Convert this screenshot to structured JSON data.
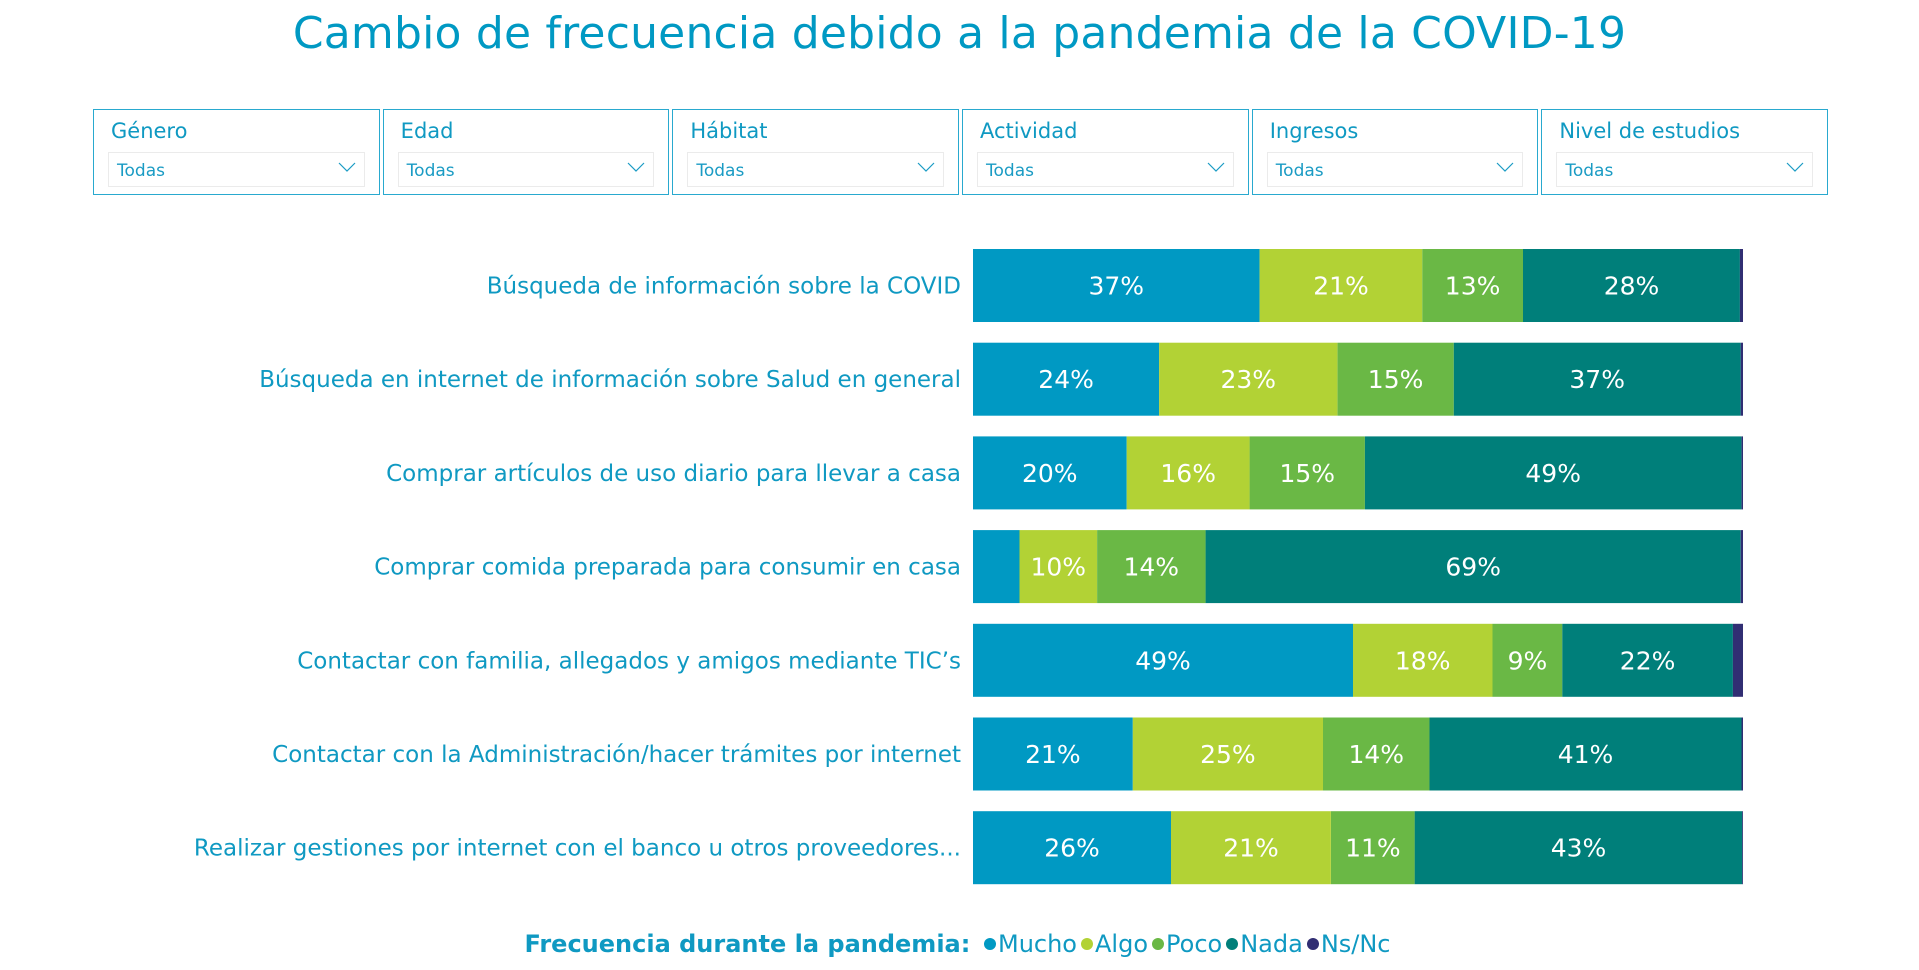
{
  "title": "Cambio de frecuencia debido a la pandemia de la COVID-19",
  "filters": [
    {
      "label": "Género",
      "value": "Todas"
    },
    {
      "label": "Edad",
      "value": "Todas"
    },
    {
      "label": "Hábitat",
      "value": "Todas"
    },
    {
      "label": "Actividad",
      "value": "Todas"
    },
    {
      "label": "Ingresos",
      "value": "Todas"
    },
    {
      "label": "Nivel de estudios",
      "value": "Todas"
    }
  ],
  "legend": {
    "title": "Frecuencia durante la pandemia:",
    "placement": "bottom-center"
  },
  "chart_data": {
    "type": "bar",
    "orientation": "horizontal",
    "stacked": "100%",
    "title": "Cambio de frecuencia debido a la pandemia de la COVID-19",
    "xlabel": "",
    "ylabel": "",
    "xlim": [
      0,
      100
    ],
    "grid": false,
    "categories": [
      "Búsqueda de información sobre la COVID",
      "Búsqueda en internet de información sobre Salud en general",
      "Comprar artículos de uso diario para llevar a casa",
      "Comprar comida preparada para consumir en casa",
      "Contactar con familia, allegados y amigos mediante TIC’s",
      "Contactar con la Administración/hacer trámites por internet",
      "Realizar gestiones por internet con el banco u otros proveedores..."
    ],
    "series": [
      {
        "name": "Mucho",
        "color": "#0099c3",
        "values": [
          37,
          24,
          20,
          6,
          49,
          21,
          26
        ],
        "labels": [
          "37%",
          "24%",
          "20%",
          "",
          "49%",
          "21%",
          "26%"
        ]
      },
      {
        "name": "Algo",
        "color": "#b2d235",
        "values": [
          21,
          23,
          16,
          10,
          18,
          25,
          21
        ],
        "labels": [
          "21%",
          "23%",
          "16%",
          "10%",
          "18%",
          "25%",
          "21%"
        ]
      },
      {
        "name": "Poco",
        "color": "#6ab845",
        "values": [
          13,
          15,
          15,
          14,
          9,
          14,
          11
        ],
        "labels": [
          "13%",
          "15%",
          "15%",
          "14%",
          "9%",
          "14%",
          "11%"
        ]
      },
      {
        "name": "Nada",
        "color": "#007f7a",
        "values": [
          28,
          37,
          49,
          69,
          22,
          41,
          43
        ],
        "labels": [
          "28%",
          "37%",
          "49%",
          "69%",
          "22%",
          "41%",
          "43%"
        ]
      },
      {
        "name": "Ns/Nc",
        "color": "#312e73",
        "values": [
          0.4,
          0.3,
          0.2,
          0.3,
          1.3,
          0.2,
          0.1
        ],
        "labels": [
          "",
          "",
          "",
          "",
          "",
          "",
          ""
        ]
      }
    ]
  }
}
